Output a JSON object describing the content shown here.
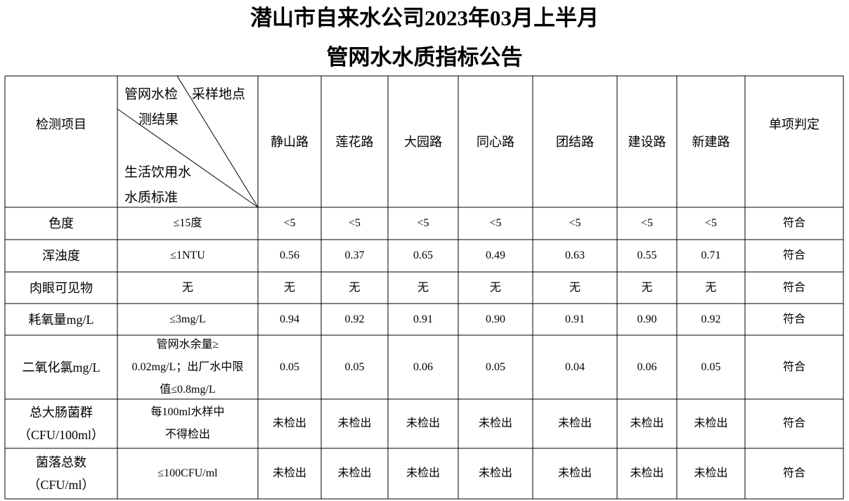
{
  "header": {
    "title_line1": "潜山市自来水公司2023年03月上半月",
    "title_line2": "管网水水质指标公告"
  },
  "table": {
    "corner": {
      "top_left": "管网水检",
      "top_left_2": "测结果",
      "top_right": "采样地点",
      "bottom_left": "生活饮用水",
      "bottom_left_2": "水质标准"
    },
    "item_header": "检测项目",
    "locations": [
      "静山路",
      "莲花路",
      "大园路",
      "同心路",
      "团结路",
      "建设路",
      "新建路"
    ],
    "verdict_header": "单项判定",
    "rows": [
      {
        "item": [
          "色度"
        ],
        "standard": [
          "≤15度"
        ],
        "results": [
          "<5",
          "<5",
          "<5",
          "<5",
          "<5",
          "<5",
          "<5"
        ],
        "verdict": "符合"
      },
      {
        "item": [
          "浑浊度"
        ],
        "standard": [
          "≤1NTU"
        ],
        "results": [
          "0.56",
          "0.37",
          "0.65",
          "0.49",
          "0.63",
          "0.55",
          "0.71"
        ],
        "verdict": "符合"
      },
      {
        "item": [
          "肉眼可见物"
        ],
        "standard": [
          "无"
        ],
        "results": [
          "无",
          "无",
          "无",
          "无",
          "无",
          "无",
          "无"
        ],
        "verdict": "符合"
      },
      {
        "item": [
          "耗氧量mg/L"
        ],
        "standard": [
          "≤3mg/L"
        ],
        "results": [
          "0.94",
          "0.92",
          "0.91",
          "0.90",
          "0.91",
          "0.90",
          "0.92"
        ],
        "verdict": "符合"
      },
      {
        "item": [
          "二氧化氯mg/L"
        ],
        "standard": [
          "管网水余量≥",
          "0.02mg/L；出厂水中限",
          "值≤0.8mg/L"
        ],
        "results": [
          "0.05",
          "0.05",
          "0.06",
          "0.05",
          "0.04",
          "0.06",
          "0.05"
        ],
        "verdict": "符合"
      },
      {
        "item": [
          "总大肠菌群",
          "（CFU/100ml）"
        ],
        "standard": [
          "每100ml水样中",
          "不得检出"
        ],
        "results": [
          "未检出",
          "未检出",
          "未检出",
          "未检出",
          "未检出",
          "未检出",
          "未检出"
        ],
        "verdict": "符合"
      },
      {
        "item": [
          "菌落总数",
          "（CFU/ml）"
        ],
        "standard": [
          "≤100CFU/ml"
        ],
        "results": [
          "未检出",
          "未检出",
          "未检出",
          "未检出",
          "未检出",
          "未检出",
          "未检出"
        ],
        "verdict": "符合"
      }
    ]
  }
}
